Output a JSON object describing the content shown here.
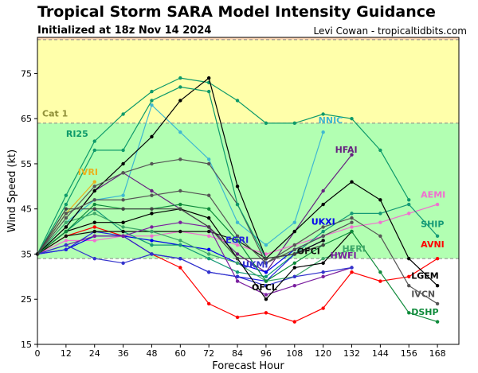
{
  "header": {
    "title": "Tropical Storm SARA Model Intensity Guidance",
    "subtitle": "Initialized at 18z Nov 14 2024",
    "credit": "Levi Cowan - tropicaltidbits.com"
  },
  "chart_data": {
    "type": "line",
    "xlabel": "Forecast Hour",
    "ylabel": "Wind Speed (kt)",
    "xlim": [
      0,
      177
    ],
    "ylim": [
      15,
      83
    ],
    "xticks": [
      0,
      12,
      24,
      36,
      48,
      60,
      72,
      84,
      96,
      108,
      120,
      132,
      144,
      156,
      168
    ],
    "yticks": [
      15,
      25,
      35,
      45,
      55,
      65,
      75
    ],
    "bands": [
      {
        "from": 15,
        "to": 34,
        "color": "#ffffff"
      },
      {
        "from": 34,
        "to": 64,
        "color": "#b2ffb2"
      },
      {
        "from": 64,
        "to": 83,
        "color": "#ffffaa"
      }
    ],
    "top_band_color": "#ffd5b3",
    "threshold_lines": [
      34,
      64,
      82.5
    ],
    "category_labels": [
      {
        "text": "Cat 1",
        "y": 65.5
      }
    ],
    "series": [
      {
        "name": "RI25",
        "color": "#0e9a6a",
        "label_at": [
          12,
          61
        ],
        "x": [
          0,
          12,
          24,
          36,
          48,
          60,
          72,
          84,
          96,
          108,
          120,
          132,
          144,
          156
        ],
        "y": [
          35,
          48,
          60,
          66,
          71,
          74,
          73,
          69,
          64,
          64,
          66,
          65,
          58,
          47
        ]
      },
      {
        "name": "IVRI",
        "color": "#ebb01c",
        "label_at": [
          17,
          52.5
        ],
        "x": [
          0,
          12,
          24
        ],
        "y": [
          35,
          44,
          51
        ]
      },
      {
        "name": "NNIC",
        "color": "#3fb8d1",
        "label_at": [
          118,
          64
        ],
        "x": [
          0,
          12,
          24,
          36,
          48,
          60,
          72,
          84,
          96,
          108,
          120
        ],
        "y": [
          35,
          42,
          47,
          48,
          68,
          62,
          56,
          42,
          37,
          42,
          62
        ]
      },
      {
        "name": "HFAI",
        "color": "#66227f",
        "label_at": [
          125,
          57.5
        ],
        "x": [
          0,
          12,
          24,
          36,
          48,
          60,
          72,
          84,
          96,
          108,
          120,
          132
        ],
        "y": [
          35,
          41,
          49,
          53,
          49,
          45,
          41,
          35,
          31,
          40,
          49,
          57
        ]
      },
      {
        "name": "AEMI",
        "color": "#f070d0",
        "label_at": [
          161,
          47.5
        ],
        "x": [
          0,
          12,
          24,
          36,
          48,
          60,
          72,
          84,
          96,
          108,
          120,
          132,
          144,
          156,
          168
        ],
        "y": [
          35,
          38,
          38,
          39,
          39,
          40,
          39,
          37,
          35,
          37,
          39,
          41,
          42,
          44,
          46
        ]
      },
      {
        "name": "UKXI",
        "color": "#0000ee",
        "label_at": [
          115,
          41.5
        ],
        "x": [
          0,
          12,
          24,
          36,
          48,
          60,
          72,
          84,
          96,
          108,
          120
        ],
        "y": [
          35,
          36,
          39,
          39,
          38,
          37,
          36,
          33,
          31,
          36,
          39
        ]
      },
      {
        "name": "SHIP",
        "color": "#159a76",
        "label_at": [
          161,
          41
        ],
        "x": [
          0,
          12,
          24,
          36,
          48,
          60,
          72,
          84,
          96,
          108,
          120,
          132,
          144,
          156,
          168
        ],
        "y": [
          35,
          40,
          45,
          40,
          37,
          37,
          34,
          31,
          30,
          35,
          40,
          44,
          44,
          46,
          39
        ]
      },
      {
        "name": "AVNI",
        "color": "#ff0000",
        "label_at": [
          161,
          36.5
        ],
        "x": [
          0,
          12,
          24,
          36,
          48,
          60,
          72,
          84,
          96,
          108,
          120,
          132,
          144,
          156,
          168
        ],
        "y": [
          35,
          39,
          41,
          39,
          35,
          32,
          24,
          21,
          22,
          20,
          23,
          31,
          29,
          30,
          34
        ]
      },
      {
        "name": "EGRI",
        "color": "#2222dd",
        "label_at": [
          79,
          37.5
        ],
        "x": [
          0,
          12,
          24,
          36,
          48,
          60,
          72,
          84,
          96,
          108,
          120
        ],
        "y": [
          35,
          36,
          40,
          39,
          35,
          34,
          31,
          30,
          29,
          35,
          38
        ]
      },
      {
        "name": "OFCI",
        "color": "#111111",
        "label_at": [
          109,
          35
        ],
        "x": [
          0,
          12,
          24,
          36,
          48,
          60,
          72,
          84,
          96,
          108,
          120
        ],
        "y": [
          35,
          39,
          40,
          40,
          40,
          40,
          40,
          38,
          34,
          35,
          38
        ]
      },
      {
        "name": "HERI",
        "color": "#3fa86a",
        "label_at": [
          128,
          35.5
        ],
        "x": [
          0,
          12,
          24,
          36,
          48,
          60,
          72,
          84,
          96,
          108,
          120,
          132
        ],
        "y": [
          35,
          42,
          44,
          41,
          40,
          38,
          35,
          33,
          29,
          30,
          34,
          36
        ]
      },
      {
        "name": "HWFI",
        "color": "#7a1e9f",
        "label_at": [
          123,
          34
        ],
        "x": [
          0,
          12,
          24,
          36,
          48,
          60,
          72,
          84,
          96,
          108,
          120,
          132
        ],
        "y": [
          35,
          37,
          39,
          39,
          41,
          42,
          41,
          29,
          26,
          28,
          30,
          32
        ]
      },
      {
        "name": "UKMI",
        "color": "#3333cc",
        "label_at": [
          86,
          32
        ],
        "x": [
          0,
          12,
          24,
          36,
          48,
          60,
          72,
          84,
          96,
          108,
          120,
          132
        ],
        "y": [
          35,
          37,
          34,
          33,
          35,
          34,
          31,
          30,
          28,
          30,
          31,
          32
        ]
      },
      {
        "name": "OFCL",
        "color": "#000000",
        "label_at": [
          90,
          27
        ],
        "x": [
          0,
          12,
          24,
          36,
          48,
          60,
          72,
          84,
          96,
          108,
          120,
          132
        ],
        "y": [
          35,
          40,
          42,
          42,
          44,
          45,
          43,
          34,
          25,
          32,
          33,
          40
        ]
      },
      {
        "name": "LGEM",
        "color": "#000000",
        "label_at": [
          157,
          29.5
        ],
        "x": [
          0,
          12,
          24,
          36,
          48,
          60,
          72,
          84,
          96,
          108,
          120,
          132,
          144,
          156,
          168
        ],
        "y": [
          35,
          41,
          49,
          55,
          61,
          69,
          74,
          50,
          34,
          40,
          46,
          51,
          47,
          34,
          28
        ]
      },
      {
        "name": "IVCN",
        "color": "#555555",
        "label_at": [
          157,
          25.5
        ],
        "x": [
          0,
          12,
          24,
          36,
          48,
          60,
          72,
          84,
          96,
          108,
          120,
          132,
          144,
          156,
          168
        ],
        "y": [
          35,
          43,
          50,
          53,
          55,
          56,
          55,
          46,
          33,
          37,
          41,
          43,
          39,
          28,
          24
        ]
      },
      {
        "name": "DSHP",
        "color": "#0e8a3a",
        "label_at": [
          157,
          21.5
        ],
        "x": [
          0,
          12,
          24,
          36,
          48,
          60,
          72,
          84,
          96,
          108,
          120,
          132,
          144,
          156,
          168
        ],
        "y": [
          35,
          40,
          46,
          45,
          45,
          46,
          45,
          38,
          29,
          33,
          37,
          40,
          31,
          22,
          20
        ]
      },
      {
        "name": "",
        "color": "#0e9a6a",
        "x": [
          0,
          12,
          24,
          36,
          48,
          60,
          72,
          84,
          96
        ],
        "y": [
          35,
          46,
          58,
          58,
          69,
          72,
          71,
          46,
          34
        ]
      },
      {
        "name": "",
        "color": "#555555",
        "x": [
          0,
          12,
          24,
          36,
          48,
          60,
          72,
          84,
          96,
          108,
          120,
          132
        ],
        "y": [
          35,
          44,
          47,
          47,
          48,
          49,
          48,
          39,
          33,
          36,
          39,
          42
        ]
      },
      {
        "name": "",
        "color": "#444444",
        "x": [
          0,
          12,
          24,
          36,
          48,
          60,
          72,
          84,
          96,
          108,
          120
        ],
        "y": [
          35,
          45,
          45,
          45,
          45,
          45,
          41,
          34,
          34,
          35,
          37
        ]
      }
    ]
  }
}
